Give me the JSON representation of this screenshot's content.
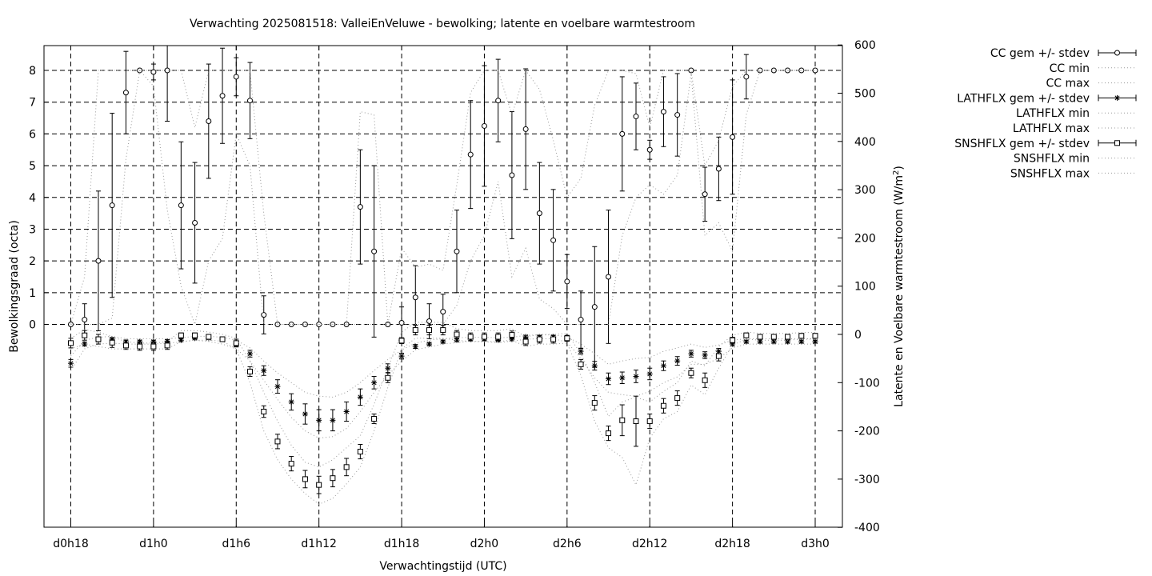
{
  "chart_data": {
    "type": "line",
    "title": "Verwachting 2025081518: ValleiEnVeluwe - bewolking; latente en voelbare warmtestroom",
    "xlabel": "Verwachtingstijd (UTC)",
    "ylabel": "Bewolkingsgraad (octa)",
    "y2label_main": "Latente en Voelbare warmtestroom (W/m",
    "y2label_sup": "2",
    "y2label_end": ")",
    "xlim": [
      18,
      72
    ],
    "ylim": [
      0,
      8.8
    ],
    "y2lim": [
      -400,
      600
    ],
    "x_ticks": [
      18,
      24,
      30,
      36,
      42,
      48,
      54,
      60,
      66,
      72
    ],
    "x_tick_labels": [
      "d0h18",
      "d1h0",
      "d1h6",
      "d1h12",
      "d1h18",
      "d2h0",
      "d2h6",
      "d2h12",
      "d2h18",
      "d3h0"
    ],
    "y_ticks": [
      0,
      1,
      2,
      3,
      4,
      5,
      6,
      7,
      8
    ],
    "y2_ticks": [
      -400,
      -300,
      -200,
      -100,
      0,
      100,
      200,
      300,
      400,
      500,
      600
    ],
    "grid": true,
    "legend_position": "outside-top-right",
    "series": [
      {
        "name": "CC gem +/- stdev",
        "axis": "y1",
        "marker": "circle",
        "x": [
          18,
          19,
          20,
          21,
          22,
          23,
          24,
          25,
          26,
          27,
          28,
          29,
          30,
          31,
          32,
          33,
          34,
          35,
          36,
          37,
          38,
          39,
          40,
          41,
          42,
          43,
          44,
          45,
          46,
          47,
          48,
          49,
          50,
          51,
          52,
          53,
          54,
          55,
          56,
          57,
          58,
          59,
          60,
          61,
          62,
          63,
          64,
          65,
          66,
          67,
          68,
          69,
          70,
          71,
          72
        ],
        "y": [
          0,
          0.15,
          2.0,
          3.75,
          7.3,
          8.0,
          7.95,
          8.0,
          3.75,
          3.2,
          6.4,
          7.2,
          7.8,
          7.05,
          0.3,
          0,
          0,
          0,
          0,
          0,
          0,
          3.7,
          2.3,
          0,
          0.05,
          0.85,
          0.1,
          0.4,
          2.3,
          5.35,
          6.25,
          7.05,
          4.7,
          6.15,
          3.5,
          2.65,
          1.35,
          0.15,
          0.55,
          1.5,
          6.0,
          6.55,
          5.5,
          6.7,
          6.6,
          8.0,
          4.1,
          4.9,
          5.9,
          7.8,
          8.0,
          8.0,
          8.0,
          8.0,
          8.0
        ],
        "err": [
          0,
          0.5,
          2.2,
          2.9,
          1.3,
          0,
          0.25,
          1.6,
          2.0,
          1.9,
          1.8,
          1.5,
          0.6,
          1.2,
          0.6,
          0,
          0,
          0,
          0,
          0,
          0,
          1.8,
          2.7,
          0,
          0.5,
          1.0,
          0.55,
          0.55,
          1.3,
          1.7,
          1.9,
          1.3,
          2.0,
          1.9,
          1.6,
          1.6,
          0.85,
          0.9,
          1.9,
          2.1,
          1.8,
          1.05,
          0.3,
          1.1,
          1.3,
          0,
          0.85,
          1.0,
          1.8,
          0.7,
          0,
          0,
          0,
          0,
          0
        ]
      },
      {
        "name": "CC min",
        "axis": "y1",
        "style": "dotted",
        "x": [
          18,
          19,
          20,
          21,
          22,
          23,
          24,
          25,
          26,
          27,
          28,
          29,
          30,
          31,
          32,
          33,
          34,
          35,
          36,
          37,
          38,
          39,
          40,
          41,
          42,
          43,
          44,
          45,
          46,
          47,
          48,
          49,
          50,
          51,
          52,
          53,
          54,
          55,
          56,
          57,
          58,
          59,
          60,
          61,
          62,
          63,
          64,
          65,
          66,
          67,
          68,
          69,
          70,
          71,
          72
        ],
        "y": [
          0,
          0,
          0,
          0.2,
          5.2,
          8.0,
          7.5,
          3.6,
          1.2,
          0,
          2.0,
          2.7,
          6.0,
          5.0,
          0,
          0,
          0,
          0,
          0,
          0,
          0,
          0,
          0,
          0,
          0,
          0,
          0,
          0,
          0.6,
          2.0,
          2.8,
          4.5,
          1.5,
          2.4,
          0.8,
          0.5,
          0,
          0,
          0,
          0,
          2.8,
          4.0,
          4.4,
          4.1,
          4.7,
          7.9,
          2.8,
          3.2,
          2.3,
          6.6,
          8.0,
          8.0,
          8.0,
          8.0,
          8.0
        ]
      },
      {
        "name": "CC max",
        "axis": "y1",
        "style": "dotted",
        "x": [
          18,
          19,
          20,
          21,
          22,
          23,
          24,
          25,
          26,
          27,
          28,
          29,
          30,
          31,
          32,
          33,
          34,
          35,
          36,
          37,
          38,
          39,
          40,
          41,
          42,
          43,
          44,
          45,
          46,
          47,
          48,
          49,
          50,
          51,
          52,
          53,
          54,
          55,
          56,
          57,
          58,
          59,
          60,
          61,
          62,
          63,
          64,
          65,
          66,
          67,
          68,
          69,
          70,
          71,
          72
        ],
        "y": [
          0,
          1.5,
          8.0,
          8.0,
          8.0,
          8.0,
          8.0,
          8.0,
          8.0,
          6.2,
          8.0,
          8.0,
          8.0,
          8.0,
          3.5,
          0,
          0,
          0,
          0,
          0,
          0,
          6.7,
          6.6,
          0,
          2.4,
          1.8,
          1.9,
          1.7,
          4.4,
          7.3,
          8.0,
          8.0,
          6.6,
          8.0,
          7.4,
          5.8,
          4.0,
          4.6,
          6.9,
          8.0,
          8.0,
          7.9,
          6.2,
          8.0,
          8.0,
          8.0,
          5.0,
          5.8,
          7.5,
          8.0,
          8.0,
          8.0,
          8.0,
          8.0,
          8.0
        ]
      },
      {
        "name": "LATHFLX gem +/- stdev",
        "axis": "y2",
        "marker": "star",
        "x": [
          18,
          19,
          20,
          21,
          22,
          23,
          24,
          25,
          26,
          27,
          28,
          29,
          30,
          31,
          32,
          33,
          34,
          35,
          36,
          37,
          38,
          39,
          40,
          41,
          42,
          43,
          44,
          45,
          46,
          47,
          48,
          49,
          50,
          51,
          52,
          53,
          54,
          55,
          56,
          57,
          58,
          59,
          60,
          61,
          62,
          63,
          64,
          65,
          66,
          67,
          68,
          69,
          70,
          71,
          72
        ],
        "y": [
          -60,
          -20,
          -12,
          -10,
          -15,
          -15,
          -15,
          -14,
          -12,
          -8,
          -8,
          -10,
          -20,
          -40,
          -75,
          -108,
          -140,
          -165,
          -178,
          -178,
          -160,
          -130,
          -100,
          -70,
          -45,
          -25,
          -20,
          -15,
          -12,
          -10,
          -10,
          -12,
          -10,
          -5,
          -5,
          -5,
          -10,
          -35,
          -65,
          -92,
          -90,
          -87,
          -82,
          -65,
          -55,
          -40,
          -43,
          -35,
          -20,
          -15,
          -15,
          -15,
          -15,
          -15,
          -15
        ],
        "err": [
          8,
          4,
          3,
          3,
          3,
          3,
          3,
          3,
          3,
          2,
          2,
          3,
          5,
          7,
          10,
          14,
          17,
          21,
          22,
          22,
          20,
          17,
          13,
          9,
          6,
          4,
          3,
          3,
          3,
          3,
          3,
          3,
          3,
          3,
          3,
          3,
          4,
          6,
          9,
          12,
          12,
          13,
          12,
          10,
          9,
          7,
          7,
          6,
          4,
          3,
          3,
          3,
          3,
          3,
          3
        ]
      },
      {
        "name": "LATHFLX min",
        "axis": "y2",
        "style": "dotted",
        "x": [
          18,
          19,
          20,
          21,
          22,
          23,
          24,
          25,
          26,
          27,
          28,
          29,
          30,
          31,
          32,
          33,
          34,
          35,
          36,
          37,
          38,
          39,
          40,
          41,
          42,
          43,
          44,
          45,
          46,
          47,
          48,
          49,
          50,
          51,
          52,
          53,
          54,
          55,
          56,
          57,
          58,
          59,
          60,
          61,
          62,
          63,
          64,
          65,
          66,
          67,
          68,
          69,
          70,
          71,
          72
        ],
        "y": [
          -75,
          -30,
          -20,
          -18,
          -20,
          -20,
          -20,
          -18,
          -16,
          -12,
          -12,
          -14,
          -30,
          -55,
          -95,
          -135,
          -172,
          -200,
          -215,
          -212,
          -195,
          -160,
          -120,
          -85,
          -55,
          -32,
          -26,
          -20,
          -17,
          -14,
          -15,
          -17,
          -14,
          -10,
          -9,
          -9,
          -16,
          -50,
          -90,
          -120,
          -125,
          -128,
          -118,
          -100,
          -88,
          -62,
          -62,
          -50,
          -28,
          -20,
          -20,
          -20,
          -20,
          -20,
          -20
        ]
      },
      {
        "name": "LATHFLX max",
        "axis": "y2",
        "style": "dotted",
        "x": [
          18,
          19,
          20,
          21,
          22,
          23,
          24,
          25,
          26,
          27,
          28,
          29,
          30,
          31,
          32,
          33,
          34,
          35,
          36,
          37,
          38,
          39,
          40,
          41,
          42,
          43,
          44,
          45,
          46,
          47,
          48,
          49,
          50,
          51,
          52,
          53,
          54,
          55,
          56,
          57,
          58,
          59,
          60,
          61,
          62,
          63,
          64,
          65,
          66,
          67,
          68,
          69,
          70,
          71,
          72
        ],
        "y": [
          -45,
          -12,
          -6,
          -4,
          -9,
          -9,
          -9,
          -9,
          -7,
          -4,
          -4,
          -6,
          -12,
          -28,
          -55,
          -80,
          -100,
          -120,
          -128,
          -130,
          -120,
          -100,
          -75,
          -52,
          -32,
          -18,
          -12,
          -9,
          -7,
          -6,
          -6,
          -7,
          -6,
          -2,
          -1,
          -1,
          -5,
          -20,
          -40,
          -62,
          -55,
          -50,
          -48,
          -35,
          -28,
          -20,
          -27,
          -22,
          -12,
          -9,
          -9,
          -9,
          -9,
          -9,
          -9
        ]
      },
      {
        "name": "SNSHFLX gem +/- stdev",
        "axis": "y2",
        "marker": "square",
        "x": [
          18,
          19,
          20,
          21,
          22,
          23,
          24,
          25,
          26,
          27,
          28,
          29,
          30,
          31,
          32,
          33,
          34,
          35,
          36,
          37,
          38,
          39,
          40,
          41,
          42,
          43,
          44,
          45,
          46,
          47,
          48,
          49,
          50,
          51,
          52,
          53,
          54,
          55,
          56,
          57,
          58,
          59,
          60,
          61,
          62,
          63,
          64,
          65,
          66,
          67,
          68,
          69,
          70,
          71,
          72
        ],
        "y": [
          -18,
          -2,
          -10,
          -17,
          -23,
          -25,
          -25,
          -23,
          -2,
          -2,
          -5,
          -10,
          -18,
          -77,
          -160,
          -222,
          -268,
          -300,
          -312,
          -298,
          -275,
          -243,
          -175,
          -90,
          -13,
          9,
          9,
          9,
          0,
          -5,
          -5,
          -5,
          -1,
          -15,
          -10,
          -10,
          -8,
          -62,
          -142,
          -205,
          -178,
          -180,
          -180,
          -148,
          -132,
          -80,
          -95,
          -45,
          -12,
          -2,
          -5,
          -5,
          -5,
          -3,
          -3
        ],
        "err": [
          10,
          10,
          10,
          10,
          8,
          8,
          8,
          8,
          5,
          5,
          5,
          5,
          8,
          10,
          12,
          15,
          15,
          18,
          18,
          18,
          18,
          15,
          10,
          10,
          6,
          10,
          10,
          10,
          8,
          8,
          8,
          8,
          8,
          8,
          8,
          8,
          6,
          10,
          15,
          15,
          32,
          52,
          15,
          15,
          15,
          10,
          15,
          10,
          6,
          5,
          5,
          5,
          5,
          5,
          5
        ]
      },
      {
        "name": "SNSHFLX min",
        "axis": "y2",
        "style": "dotted",
        "x": [
          18,
          19,
          20,
          21,
          22,
          23,
          24,
          25,
          26,
          27,
          28,
          29,
          30,
          31,
          32,
          33,
          34,
          35,
          36,
          37,
          38,
          39,
          40,
          41,
          42,
          43,
          44,
          45,
          46,
          47,
          48,
          49,
          50,
          51,
          52,
          53,
          54,
          55,
          56,
          57,
          58,
          59,
          60,
          61,
          62,
          63,
          64,
          65,
          66,
          67,
          68,
          69,
          70,
          71,
          72
        ],
        "y": [
          -30,
          -20,
          -25,
          -30,
          -30,
          -30,
          -30,
          -30,
          -15,
          -12,
          -15,
          -20,
          -30,
          -100,
          -200,
          -260,
          -300,
          -330,
          -352,
          -340,
          -310,
          -275,
          -200,
          -110,
          -30,
          -8,
          -8,
          -8,
          -12,
          -15,
          -15,
          -15,
          -12,
          -25,
          -20,
          -20,
          -18,
          -85,
          -180,
          -235,
          -255,
          -312,
          -215,
          -175,
          -160,
          -105,
          -125,
          -70,
          -22,
          -10,
          -12,
          -12,
          -12,
          -10,
          -10
        ]
      },
      {
        "name": "SNSHFLX max",
        "axis": "y2",
        "style": "dotted",
        "x": [
          18,
          19,
          20,
          21,
          22,
          23,
          24,
          25,
          26,
          27,
          28,
          29,
          30,
          31,
          32,
          33,
          34,
          35,
          36,
          37,
          38,
          39,
          40,
          41,
          42,
          43,
          44,
          45,
          46,
          47,
          48,
          49,
          50,
          51,
          52,
          53,
          54,
          55,
          56,
          57,
          58,
          59,
          60,
          61,
          62,
          63,
          64,
          65,
          66,
          67,
          68,
          69,
          70,
          71,
          72
        ],
        "y": [
          -8,
          10,
          5,
          -5,
          -15,
          -18,
          -18,
          -15,
          8,
          8,
          5,
          0,
          -8,
          -55,
          -120,
          -180,
          -230,
          -265,
          -275,
          -260,
          -235,
          -210,
          -145,
          -70,
          5,
          25,
          25,
          25,
          12,
          8,
          8,
          8,
          12,
          -5,
          0,
          0,
          2,
          -40,
          -100,
          -170,
          -140,
          -130,
          -140,
          -118,
          -100,
          -55,
          -65,
          -25,
          -2,
          5,
          2,
          2,
          2,
          4,
          4
        ]
      }
    ]
  }
}
